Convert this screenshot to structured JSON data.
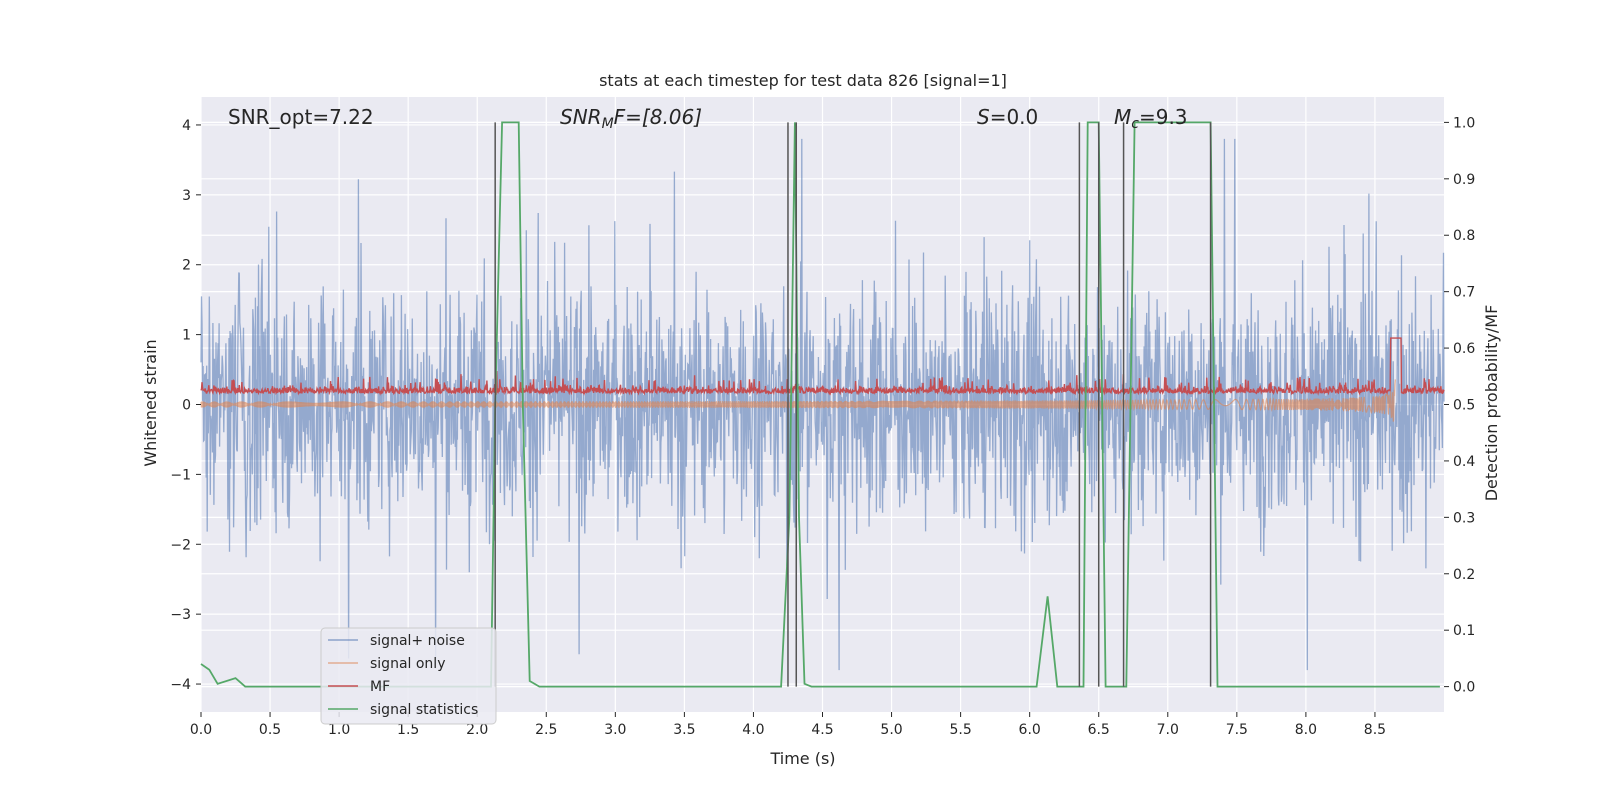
{
  "chart_data": {
    "type": "line",
    "title": "stats at each timestep for test data 826 [signal=1]",
    "xlabel": "Time (s)",
    "ylabel": "Whitened strain",
    "y2label": "Detection probability/MF",
    "xlim": [
      0,
      9.0
    ],
    "ylim": [
      -4.4,
      4.4
    ],
    "y2lim": [
      -0.045,
      1.045
    ],
    "xticks": [
      "0.0",
      "0.5",
      "1.0",
      "1.5",
      "2.0",
      "2.5",
      "3.0",
      "3.5",
      "4.0",
      "4.5",
      "5.0",
      "5.5",
      "6.0",
      "6.5",
      "7.0",
      "7.5",
      "8.0",
      "8.5"
    ],
    "yticks": [
      "4",
      "3",
      "2",
      "1",
      "0",
      "−1",
      "−2",
      "−3",
      "−4"
    ],
    "y2ticks": [
      "1.0",
      "0.9",
      "0.8",
      "0.7",
      "0.6",
      "0.5",
      "0.4",
      "0.3",
      "0.2",
      "0.1",
      "0.0"
    ],
    "grid": true,
    "legend_position": "lower-left",
    "annotations": [
      {
        "text": "SNR_opt=7.22"
      },
      {
        "text": "SNR",
        "sub": "M",
        "rest": "F=[8.06]"
      },
      {
        "text": "S",
        "rest": "=0.0"
      },
      {
        "text": "M",
        "sub": "c",
        "rest": "=9.3"
      }
    ],
    "series": [
      {
        "name": "signal+ noise",
        "color": "#4c72b0",
        "kind": "noise",
        "amplitude_range": [
          -3.8,
          3.8
        ]
      },
      {
        "name": "signal only",
        "color": "#dd8452",
        "kind": "chirp",
        "merger_time": 8.65,
        "peak_amplitude": 1.0
      },
      {
        "name": "MF",
        "color": "#c44e52",
        "kind": "mf",
        "baseline": 0.16
      },
      {
        "name": "signal statistics",
        "color": "#55a868",
        "kind": "step",
        "x": [
          0.0,
          0.06,
          0.12,
          0.25,
          0.32,
          2.1,
          2.13,
          2.18,
          2.3,
          2.33,
          2.38,
          2.45,
          4.2,
          4.26,
          4.3,
          4.33,
          4.37,
          4.42,
          6.05,
          6.13,
          6.2,
          6.39,
          6.42,
          6.5,
          6.55,
          6.7,
          6.73,
          6.76,
          7.31,
          7.36,
          8.97
        ],
        "y": [
          0.04,
          0.03,
          0.005,
          0.015,
          0.0,
          0.0,
          0.5,
          1.0,
          1.0,
          0.5,
          0.01,
          0.0,
          0.0,
          0.3,
          1.0,
          0.3,
          0.005,
          0.0,
          0.0,
          0.16,
          0.0,
          0.0,
          1.0,
          1.0,
          0.0,
          0.0,
          0.5,
          1.0,
          1.0,
          0.0,
          0.0
        ]
      },
      {
        "name": "",
        "color": "#555555",
        "kind": "vlines",
        "x": [
          2.13,
          4.25,
          4.31,
          6.36,
          6.5,
          6.68,
          7.31
        ]
      }
    ]
  }
}
